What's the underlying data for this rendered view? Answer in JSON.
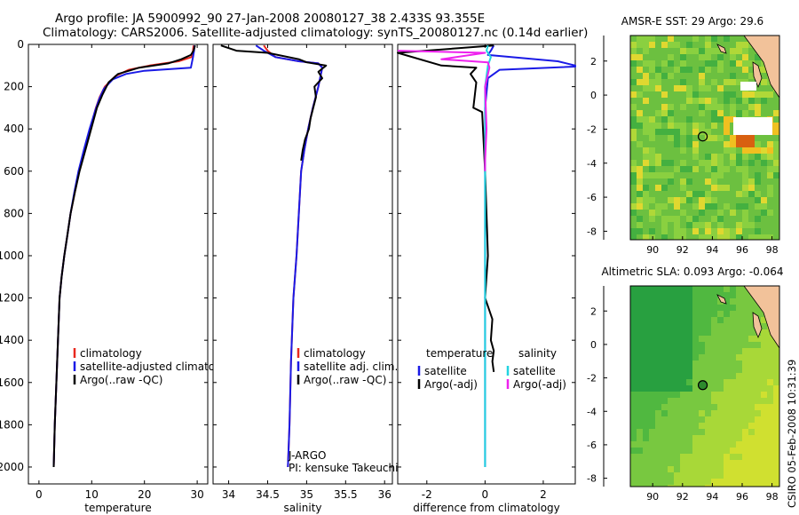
{
  "header": {
    "title_line1": "Argo profile: JA 5900992_90 27-Jan-2008 20080127_38 2.433S 93.355E",
    "title_line2": "Climatology: CARS2006. Satellite-adjusted climatology: synTS_20080127.nc (0.14d earlier)"
  },
  "credit": "CSIRO 05-Feb-2008 10:31:39",
  "colors": {
    "climatology": "#e8281e",
    "satellite": "#1a1ae6",
    "argo": "#000000",
    "salinity_diff": "#22d4e0",
    "argo_salinity_diff": "#ee22ee",
    "sst_marker": "#2d8a2d"
  },
  "chart_data": [
    {
      "type": "line",
      "xlabel": "temperature",
      "ylabel": "",
      "xlim": [
        -2,
        32
      ],
      "ylim": [
        2080,
        0
      ],
      "xticks": [
        0,
        10,
        20,
        30
      ],
      "yticks": [
        0,
        200,
        400,
        600,
        800,
        1000,
        1200,
        1400,
        1600,
        1800,
        2000
      ],
      "legend_position": "lower-right",
      "series": [
        {
          "name": "climatology",
          "color": "#e8281e",
          "x": [
            29.3,
            29.2,
            28.9,
            26.5,
            21.0,
            17.0,
            14.5,
            12.5,
            11.5,
            10.8,
            9.7,
            8.6,
            7.6,
            6.8,
            6.0,
            5.4,
            4.8,
            4.3,
            3.9,
            3.6,
            3.3,
            3.0,
            2.8
          ],
          "y": [
            5,
            30,
            60,
            80,
            100,
            120,
            150,
            200,
            250,
            300,
            400,
            500,
            600,
            700,
            800,
            900,
            1000,
            1100,
            1200,
            1400,
            1600,
            1800,
            2000
          ]
        },
        {
          "name": "satellite-adjusted climatology",
          "color": "#1a1ae6",
          "x": [
            29.5,
            29.4,
            29.2,
            28.8,
            20.0,
            16.5,
            14.0,
            12.3,
            11.4,
            10.7,
            9.6,
            8.5,
            7.5,
            6.7,
            6.0,
            5.4,
            4.8,
            4.3,
            3.9,
            3.6,
            3.3,
            3.0,
            2.8
          ],
          "y": [
            5,
            30,
            60,
            110,
            125,
            140,
            165,
            210,
            260,
            310,
            400,
            500,
            600,
            700,
            800,
            900,
            1000,
            1100,
            1200,
            1400,
            1600,
            1800,
            2000
          ]
        },
        {
          "name": "Argo(..raw -QC)",
          "color": "#000000",
          "x": [
            29.6,
            29.3,
            28.8,
            27.0,
            24.5,
            19.0,
            15.0,
            13.2,
            12.0,
            11.0,
            9.9,
            8.8,
            7.7,
            6.8,
            6.0,
            5.4,
            4.8,
            4.3,
            3.9,
            3.6,
            3.3,
            3.0,
            2.8
          ],
          "y": [
            5,
            30,
            50,
            70,
            90,
            110,
            140,
            180,
            240,
            300,
            400,
            500,
            600,
            700,
            800,
            900,
            1000,
            1100,
            1200,
            1400,
            1600,
            1800,
            2000
          ]
        }
      ]
    },
    {
      "type": "line",
      "xlabel": "salinity",
      "xlim": [
        33.8,
        36.1
      ],
      "ylim": [
        2080,
        0
      ],
      "xticks": [
        34,
        34.5,
        35,
        35.5,
        36
      ],
      "legend_position": "lower-right",
      "annotations": [
        "J-ARGO",
        "PI: kensuke Takeuchi"
      ],
      "series": [
        {
          "name": "climatology",
          "color": "#e8281e",
          "x": [
            34.45,
            34.5,
            34.6,
            34.9,
            35.15,
            35.2,
            35.15,
            35.08,
            35.02,
            34.97,
            34.93,
            34.9,
            34.87,
            34.83,
            34.8,
            34.78,
            34.76
          ],
          "y": [
            5,
            30,
            60,
            80,
            90,
            110,
            200,
            300,
            400,
            500,
            600,
            800,
            1000,
            1200,
            1500,
            1800,
            2000
          ]
        },
        {
          "name": "satellite adj. clim.",
          "color": "#1a1ae6",
          "x": [
            34.35,
            34.45,
            34.6,
            34.9,
            35.15,
            35.2,
            35.15,
            35.08,
            35.02,
            34.97,
            34.93,
            34.9,
            34.87,
            34.83,
            34.8,
            34.78,
            34.76
          ],
          "y": [
            5,
            30,
            60,
            80,
            90,
            110,
            200,
            300,
            400,
            500,
            600,
            800,
            1000,
            1200,
            1500,
            1800,
            2000
          ]
        },
        {
          "name": "Argo(..raw -QC)",
          "color": "#000000",
          "x": [
            33.9,
            34.1,
            34.5,
            34.9,
            35.0,
            35.25,
            35.15,
            35.2,
            35.1,
            35.12,
            35.05,
            35.03,
            34.98,
            34.95,
            34.93
          ],
          "y": [
            5,
            30,
            40,
            70,
            85,
            100,
            130,
            160,
            200,
            250,
            350,
            400,
            450,
            500,
            550
          ]
        }
      ]
    },
    {
      "type": "line",
      "xlabel": "difference from climatology",
      "xlim": [
        -3,
        3.1
      ],
      "ylim": [
        2080,
        0
      ],
      "xticks": [
        -2,
        0,
        2
      ],
      "legend_position": "lower-right",
      "legend_headers": [
        "temperature",
        "salinity"
      ],
      "series": [
        {
          "name": "satellite",
          "group": "temperature",
          "color": "#1a1ae6",
          "x": [
            0.3,
            0.2,
            0.1,
            2.5,
            3.1,
            3.1,
            0.5,
            0.1,
            0.0,
            0.0,
            0.0,
            0.0,
            0.0
          ],
          "y": [
            5,
            30,
            50,
            80,
            100,
            105,
            120,
            160,
            300,
            600,
            1000,
            1500,
            2000
          ]
        },
        {
          "name": "Argo(-adj)",
          "group": "temperature",
          "color": "#000000",
          "x": [
            0.3,
            -3.0,
            -1.5,
            -0.3,
            -0.5,
            -0.3,
            -0.4,
            -0.1,
            0.0,
            0.1,
            0.0,
            0.25,
            0.2,
            0.3,
            0.25,
            0.3
          ],
          "y": [
            5,
            40,
            100,
            110,
            140,
            180,
            300,
            320,
            600,
            1000,
            1200,
            1300,
            1400,
            1450,
            1500,
            1550
          ]
        },
        {
          "name": "satellite",
          "group": "salinity",
          "color": "#22d4e0",
          "x": [
            0.1,
            0.05,
            0.2,
            0.1,
            0.0,
            0.0,
            0.0,
            0.0,
            0.0
          ],
          "y": [
            5,
            30,
            60,
            100,
            200,
            500,
            1000,
            1500,
            2000
          ]
        },
        {
          "name": "Argo(-adj)",
          "group": "salinity",
          "color": "#ee22ee",
          "x": [
            -3.0,
            0.0,
            -1.5,
            0.1,
            0.15,
            0.0,
            0.05,
            0.0,
            0.0
          ],
          "y": [
            30,
            40,
            70,
            85,
            110,
            200,
            400,
            550,
            600
          ]
        }
      ]
    },
    {
      "type": "heatmap",
      "title": "AMSR-E SST: 29  Argo: 29.6",
      "xlim": [
        88.5,
        98.5
      ],
      "ylim": [
        -8.5,
        3.5
      ],
      "xticks": [
        90,
        92,
        94,
        96,
        98
      ],
      "yticks": [
        2,
        0,
        -2,
        -4,
        -6,
        -8
      ],
      "marker": {
        "lon": 93.355,
        "lat": -2.433
      }
    },
    {
      "type": "heatmap",
      "title": "Altimetric SLA: 0.093  Argo: -0.064",
      "xlim": [
        88.5,
        98.5
      ],
      "ylim": [
        -8.5,
        3.5
      ],
      "xticks": [
        90,
        92,
        94,
        96,
        98
      ],
      "yticks": [
        2,
        0,
        -2,
        -4,
        -6,
        -8
      ],
      "marker": {
        "lon": 93.355,
        "lat": -2.433
      }
    }
  ]
}
